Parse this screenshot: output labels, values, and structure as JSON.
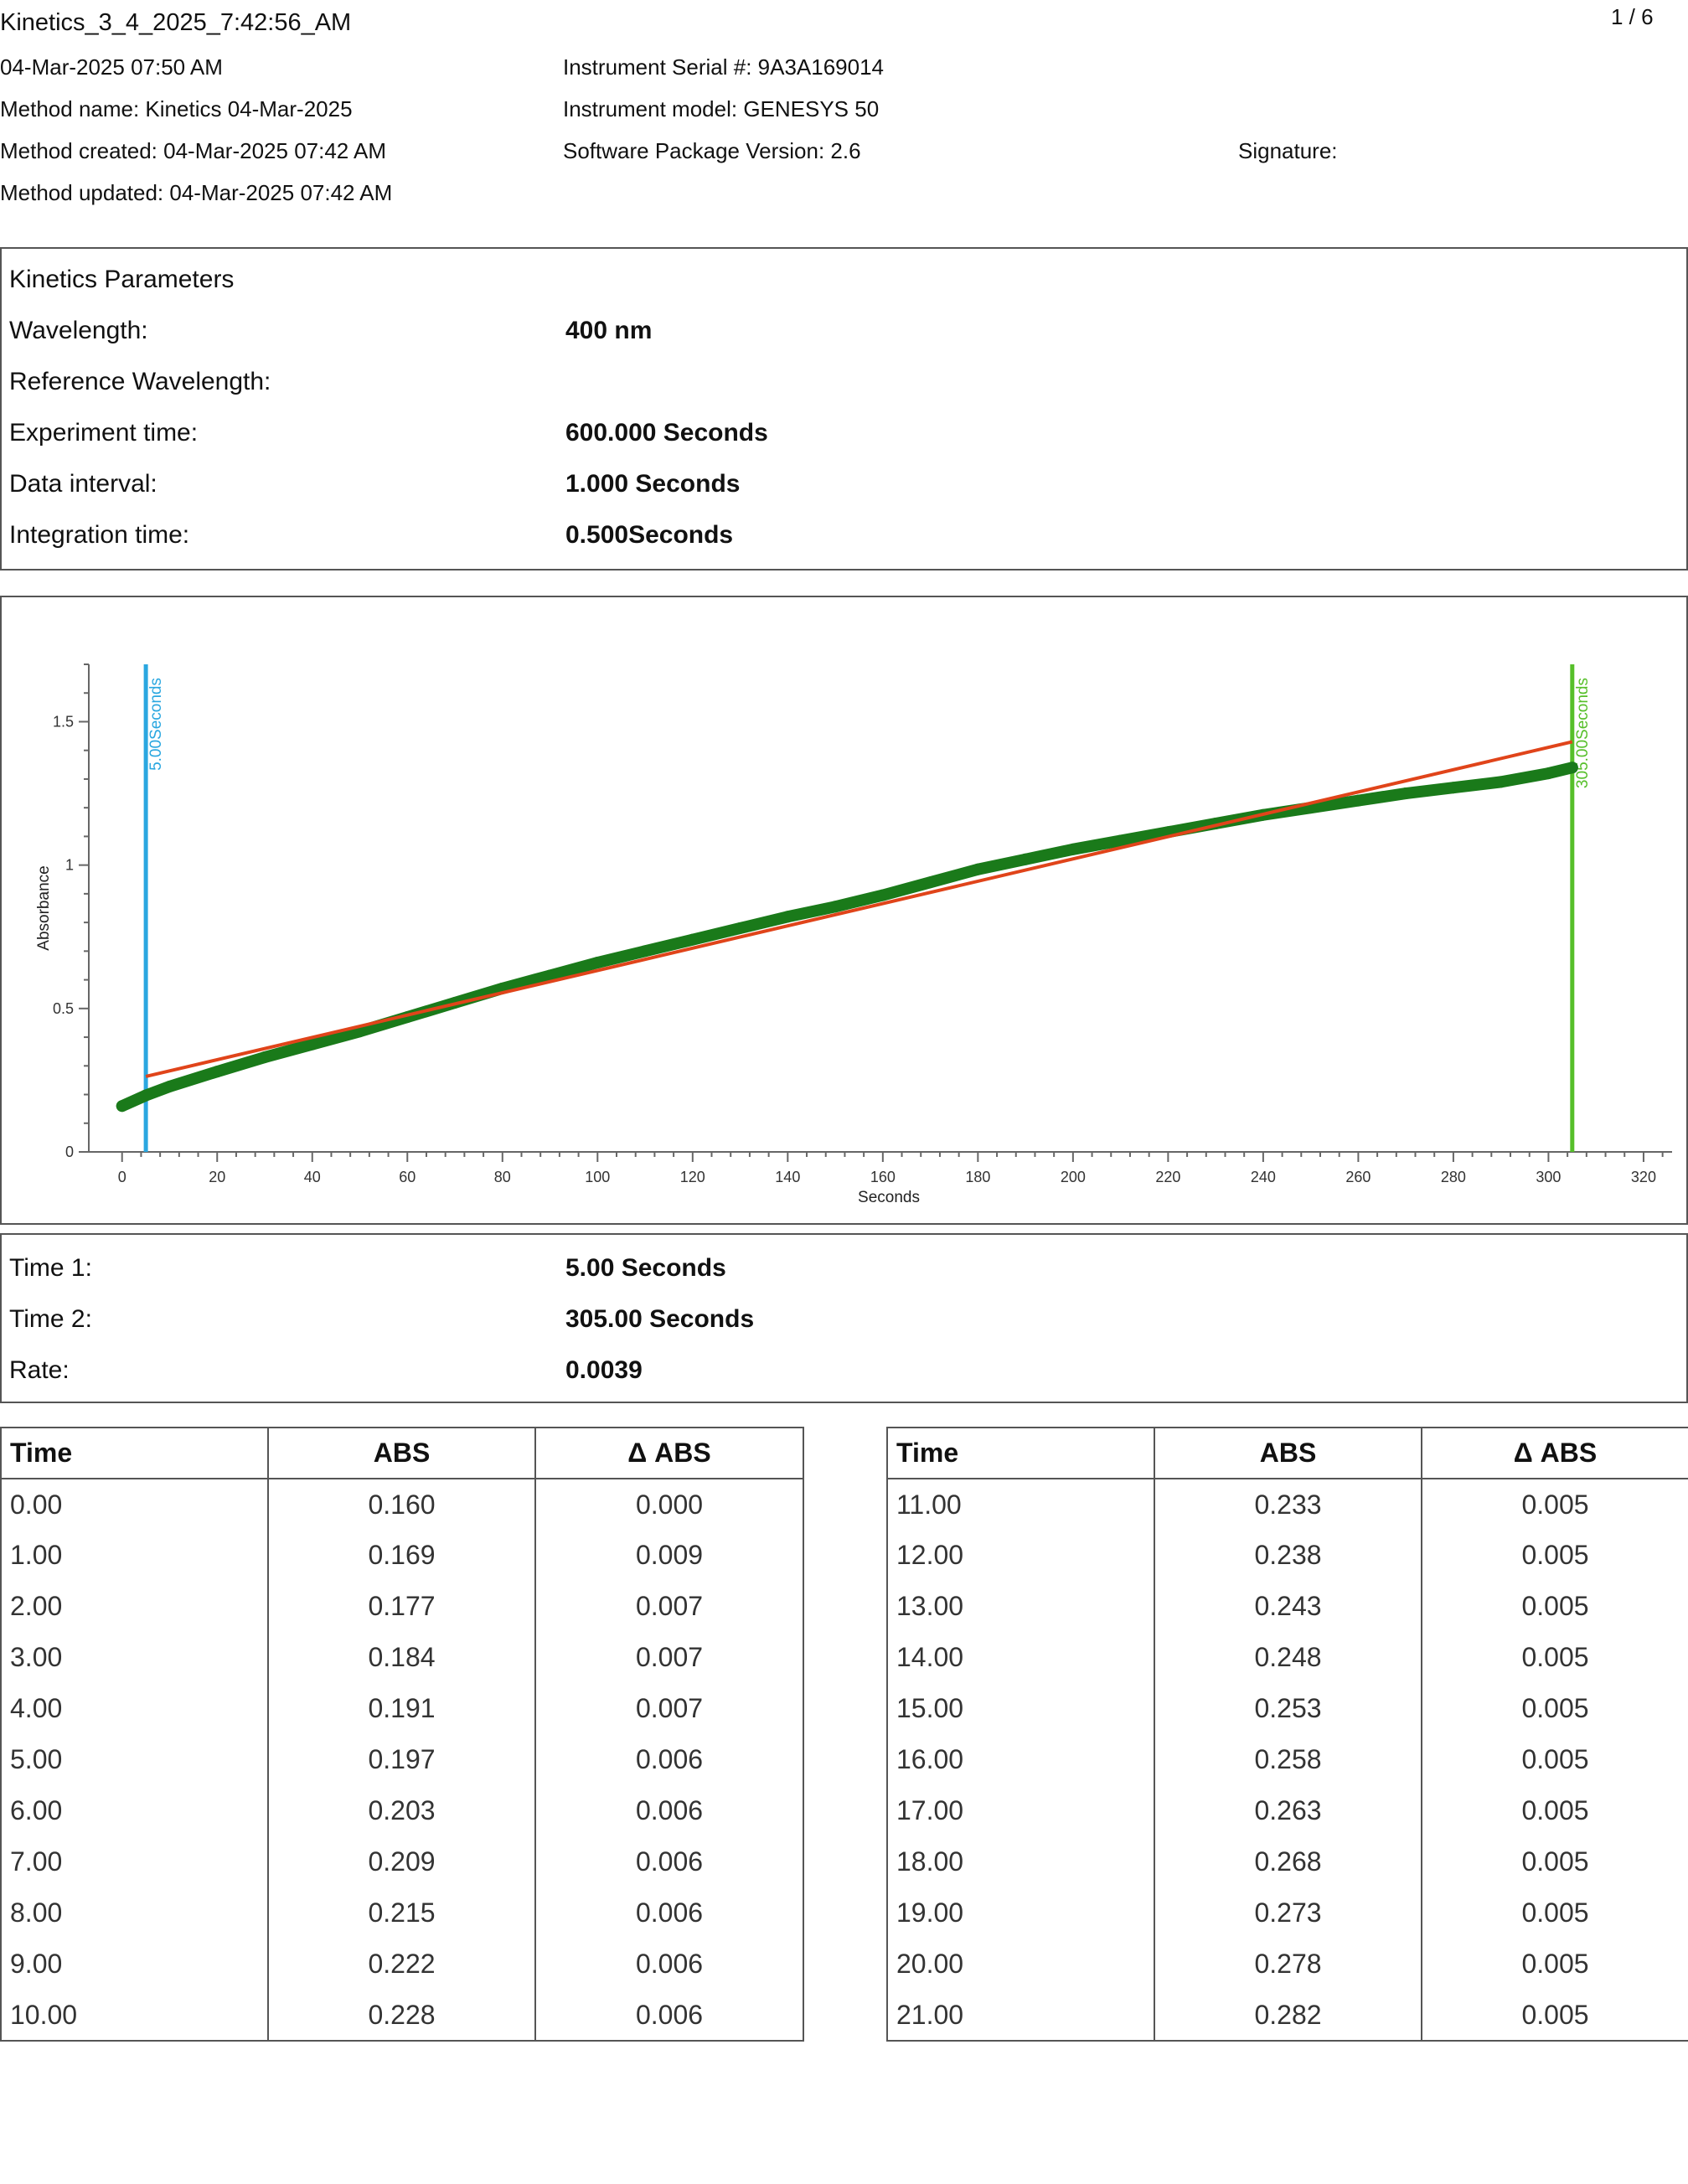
{
  "header": {
    "title": "Kinetics_3_4_2025_7:42:56_AM",
    "page_number": "1 / 6",
    "timestamp": "04-Mar-2025 07:50 AM",
    "method_name": "Method name: Kinetics 04-Mar-2025",
    "method_created": "Method created: 04-Mar-2025 07:42 AM",
    "method_updated": "Method updated: 04-Mar-2025 07:42 AM",
    "instrument_serial": "Instrument Serial #: 9A3A169014",
    "instrument_model": "Instrument model: GENESYS 50",
    "software_version": "Software Package Version: 2.6",
    "signature": "Signature:"
  },
  "parameters": {
    "heading": "Kinetics Parameters",
    "rows": [
      {
        "label": "Wavelength:",
        "value": "400 nm"
      },
      {
        "label": "Reference Wavelength:",
        "value": ""
      },
      {
        "label": "Experiment time:",
        "value": "600.000 Seconds"
      },
      {
        "label": "Data interval:",
        "value": "1.000 Seconds"
      },
      {
        "label": "Integration time:",
        "value": "0.500Seconds"
      }
    ]
  },
  "chart_data": {
    "type": "scatter",
    "xlabel": "Seconds",
    "ylabel": "Absorbance",
    "xlim": [
      -7,
      326
    ],
    "ylim": [
      0,
      1.7
    ],
    "xticks": [
      0,
      20,
      40,
      60,
      80,
      100,
      120,
      140,
      160,
      180,
      200,
      220,
      240,
      260,
      280,
      300,
      320
    ],
    "yticks": [
      0,
      0.5,
      1,
      1.5
    ],
    "ytick_labels": [
      "0",
      "0.5",
      "1",
      "1.5"
    ],
    "series": [
      {
        "x": [
          0,
          5,
          10,
          20,
          30,
          40,
          50,
          60,
          70,
          80,
          90,
          100,
          110,
          120,
          130,
          140,
          150,
          160,
          170,
          180,
          190,
          200,
          210,
          220,
          230,
          240,
          250,
          260,
          270,
          280,
          290,
          300,
          305
        ],
        "y": [
          0.16,
          0.197,
          0.228,
          0.28,
          0.33,
          0.375,
          0.42,
          0.47,
          0.52,
          0.57,
          0.615,
          0.66,
          0.7,
          0.74,
          0.78,
          0.82,
          0.855,
          0.895,
          0.94,
          0.985,
          1.02,
          1.055,
          1.085,
          1.115,
          1.145,
          1.175,
          1.2,
          1.225,
          1.25,
          1.27,
          1.29,
          1.32,
          1.34
        ],
        "color": "#1a7a1a"
      }
    ],
    "fit_line": {
      "x": [
        5,
        305
      ],
      "y": [
        0.263,
        1.43
      ],
      "color": "#e0441a"
    },
    "markers": [
      {
        "x": 5,
        "label": "5.00Seconds",
        "color": "#2aa7e0"
      },
      {
        "x": 305,
        "label": "305.00Seconds",
        "color": "#56bf2a"
      }
    ]
  },
  "results": {
    "rows": [
      {
        "label": "Time 1:",
        "value": "5.00 Seconds"
      },
      {
        "label": "Time 2:",
        "value": "305.00 Seconds"
      },
      {
        "label": "Rate:",
        "value": "0.0039"
      }
    ]
  },
  "table_left": {
    "headers": [
      "Time",
      "ABS",
      "Δ ABS"
    ],
    "rows": [
      [
        "0.00",
        "0.160",
        "0.000"
      ],
      [
        "1.00",
        "0.169",
        "0.009"
      ],
      [
        "2.00",
        "0.177",
        "0.007"
      ],
      [
        "3.00",
        "0.184",
        "0.007"
      ],
      [
        "4.00",
        "0.191",
        "0.007"
      ],
      [
        "5.00",
        "0.197",
        "0.006"
      ],
      [
        "6.00",
        "0.203",
        "0.006"
      ],
      [
        "7.00",
        "0.209",
        "0.006"
      ],
      [
        "8.00",
        "0.215",
        "0.006"
      ],
      [
        "9.00",
        "0.222",
        "0.006"
      ],
      [
        "10.00",
        "0.228",
        "0.006"
      ]
    ]
  },
  "table_right": {
    "headers": [
      "Time",
      "ABS",
      "Δ ABS"
    ],
    "rows": [
      [
        "11.00",
        "0.233",
        "0.005"
      ],
      [
        "12.00",
        "0.238",
        "0.005"
      ],
      [
        "13.00",
        "0.243",
        "0.005"
      ],
      [
        "14.00",
        "0.248",
        "0.005"
      ],
      [
        "15.00",
        "0.253",
        "0.005"
      ],
      [
        "16.00",
        "0.258",
        "0.005"
      ],
      [
        "17.00",
        "0.263",
        "0.005"
      ],
      [
        "18.00",
        "0.268",
        "0.005"
      ],
      [
        "19.00",
        "0.273",
        "0.005"
      ],
      [
        "20.00",
        "0.278",
        "0.005"
      ],
      [
        "21.00",
        "0.282",
        "0.005"
      ]
    ]
  }
}
